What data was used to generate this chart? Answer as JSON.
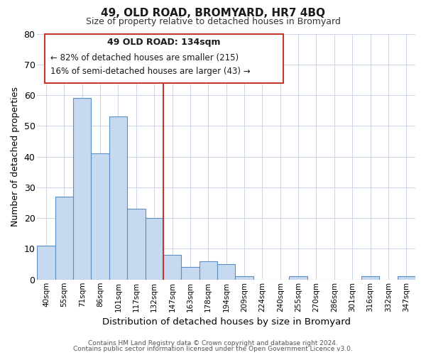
{
  "title": "49, OLD ROAD, BROMYARD, HR7 4BQ",
  "subtitle": "Size of property relative to detached houses in Bromyard",
  "xlabel": "Distribution of detached houses by size in Bromyard",
  "ylabel": "Number of detached properties",
  "categories": [
    "40sqm",
    "55sqm",
    "71sqm",
    "86sqm",
    "101sqm",
    "117sqm",
    "132sqm",
    "147sqm",
    "163sqm",
    "178sqm",
    "194sqm",
    "209sqm",
    "224sqm",
    "240sqm",
    "255sqm",
    "270sqm",
    "286sqm",
    "301sqm",
    "316sqm",
    "332sqm",
    "347sqm"
  ],
  "values": [
    11,
    27,
    59,
    41,
    53,
    23,
    20,
    8,
    4,
    6,
    5,
    1,
    0,
    0,
    1,
    0,
    0,
    0,
    1,
    0,
    1
  ],
  "bar_color": "#c6d9f0",
  "bar_edge_color": "#5b8ec5",
  "highlight_bar_index": 6,
  "annotation_title": "49 OLD ROAD: 134sqm",
  "annotation_line1": "← 82% of detached houses are smaller (215)",
  "annotation_line2": "16% of semi-detached houses are larger (43) →",
  "annotation_box_color": "#ffffff",
  "annotation_box_edge": "#c0392b",
  "vline_color": "#c0392b",
  "ylim": [
    0,
    80
  ],
  "yticks": [
    0,
    10,
    20,
    30,
    40,
    50,
    60,
    70,
    80
  ],
  "footer1": "Contains HM Land Registry data © Crown copyright and database right 2024.",
  "footer2": "Contains public sector information licensed under the Open Government Licence v3.0.",
  "bg_color": "#ffffff",
  "grid_color": "#ccd6e8"
}
